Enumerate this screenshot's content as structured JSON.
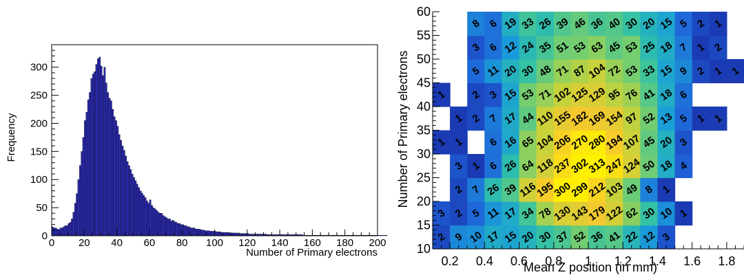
{
  "chart_data": [
    {
      "type": "bar",
      "subtype": "histogram",
      "xlabel": "Number of Primary electrons",
      "ylabel": "Frequency",
      "xlim": [
        0,
        200
      ],
      "ylim": [
        0,
        340
      ],
      "x_ticks": [
        0,
        20,
        40,
        60,
        80,
        100,
        120,
        140,
        160,
        180,
        200
      ],
      "y_ticks": [
        0,
        50,
        100,
        150,
        200,
        250,
        300
      ],
      "bin_width": 1,
      "bar_color": "#2b2bb0",
      "values": [
        16,
        14,
        14,
        12,
        11,
        14,
        14,
        16,
        18,
        18,
        22,
        24,
        30,
        42,
        58,
        75,
        100,
        125,
        150,
        175,
        205,
        220,
        242,
        255,
        280,
        288,
        292,
        305,
        315,
        318,
        302,
        285,
        300,
        272,
        255,
        245,
        240,
        225,
        212,
        205,
        195,
        180,
        170,
        160,
        152,
        142,
        132,
        125,
        118,
        110,
        104,
        98,
        92,
        86,
        80,
        76,
        72,
        68,
        62,
        58,
        64,
        54,
        50,
        48,
        45,
        42,
        40,
        40,
        36,
        34,
        32,
        30,
        30,
        26,
        28,
        25,
        24,
        22,
        22,
        20,
        20,
        18,
        18,
        16,
        16,
        14,
        14,
        14,
        12,
        12,
        12,
        11,
        10,
        10,
        9,
        9,
        9,
        8,
        8,
        8,
        8,
        7,
        7,
        7,
        6,
        6,
        6,
        6,
        6,
        5,
        5,
        5,
        5,
        5,
        4,
        4,
        4,
        4,
        4,
        4,
        4,
        3,
        3,
        3,
        3,
        3,
        3,
        3,
        3,
        3,
        3,
        3,
        2,
        2,
        2,
        2,
        2,
        2,
        2,
        2,
        2,
        2,
        2,
        2,
        2,
        2,
        2,
        2,
        2,
        2,
        2,
        2,
        2,
        2,
        1,
        1,
        1,
        1,
        1,
        1,
        1,
        1,
        1,
        1,
        1,
        1,
        1,
        1,
        1,
        1,
        1,
        1,
        1,
        1,
        1,
        1,
        1,
        1,
        1,
        1,
        1,
        1,
        1,
        1,
        1,
        1,
        1,
        1,
        1,
        1,
        1,
        1,
        1,
        1,
        1,
        1,
        1,
        1,
        1,
        1,
        1,
        1,
        1,
        1,
        1,
        1
      ]
    },
    {
      "type": "heatmap",
      "xlabel": "Mean Z position (in mm)",
      "ylabel": "Number of Primary electrons",
      "xlim": [
        0.1,
        1.9
      ],
      "ylim": [
        10,
        60
      ],
      "x_ticks": [
        0.2,
        0.4,
        0.6,
        0.8,
        1,
        1.2,
        1.4,
        1.6,
        1.8
      ],
      "y_ticks": [
        10,
        15,
        20,
        25,
        30,
        35,
        40,
        45,
        50,
        55,
        60
      ],
      "x_bin_edges_start": 0.1,
      "x_bin_width": 0.1,
      "y_bin_edges_start": 10,
      "y_bin_width": 5,
      "cell_labels_rotated": true,
      "colorscale": [
        "#1a2fa8",
        "#1f63d9",
        "#1a9fd8",
        "#30c0a8",
        "#7ccf6a",
        "#c9d23a",
        "#f6c82e",
        "#fff200"
      ],
      "rows": [
        {
          "y_range": [
            10,
            15
          ],
          "counts": [
            2,
            9,
            10,
            17,
            15,
            20,
            30,
            37,
            52,
            36,
            41,
            22,
            12,
            3,
            null,
            null,
            null,
            null
          ]
        },
        {
          "y_range": [
            15,
            20
          ],
          "counts": [
            3,
            2,
            5,
            11,
            17,
            34,
            78,
            130,
            143,
            179,
            122,
            62,
            30,
            10,
            1,
            null,
            null,
            null
          ]
        },
        {
          "y_range": [
            20,
            25
          ],
          "counts": [
            null,
            2,
            7,
            26,
            39,
            116,
            195,
            300,
            299,
            212,
            103,
            49,
            8,
            1,
            null,
            null,
            null,
            null
          ]
        },
        {
          "y_range": [
            25,
            30
          ],
          "counts": [
            null,
            3,
            1,
            6,
            26,
            64,
            118,
            237,
            302,
            313,
            247,
            124,
            50,
            18,
            4,
            null,
            null,
            null
          ]
        },
        {
          "y_range": [
            30,
            35
          ],
          "counts": [
            1,
            1,
            null,
            6,
            16,
            65,
            104,
            206,
            270,
            280,
            194,
            107,
            45,
            20,
            3,
            null,
            null,
            null
          ]
        },
        {
          "y_range": [
            35,
            40
          ],
          "counts": [
            null,
            1,
            2,
            7,
            17,
            44,
            110,
            155,
            182,
            169,
            154,
            97,
            52,
            13,
            5,
            1,
            1,
            null
          ]
        },
        {
          "y_range": [
            40,
            45
          ],
          "counts": [
            1,
            null,
            2,
            3,
            15,
            53,
            71,
            102,
            125,
            129,
            95,
            76,
            41,
            18,
            6,
            null,
            null,
            null
          ]
        },
        {
          "y_range": [
            45,
            50
          ],
          "counts": [
            null,
            null,
            5,
            11,
            20,
            30,
            48,
            71,
            87,
            104,
            72,
            53,
            33,
            15,
            9,
            2,
            1,
            1
          ]
        },
        {
          "y_range": [
            50,
            55
          ],
          "counts": [
            null,
            null,
            3,
            6,
            12,
            24,
            35,
            51,
            53,
            63,
            45,
            53,
            25,
            18,
            7,
            1,
            2,
            null
          ]
        },
        {
          "y_range": [
            55,
            60
          ],
          "counts": [
            null,
            null,
            8,
            6,
            19,
            33,
            26,
            39,
            46,
            36,
            40,
            30,
            20,
            15,
            5,
            2,
            1,
            null
          ]
        }
      ]
    }
  ]
}
